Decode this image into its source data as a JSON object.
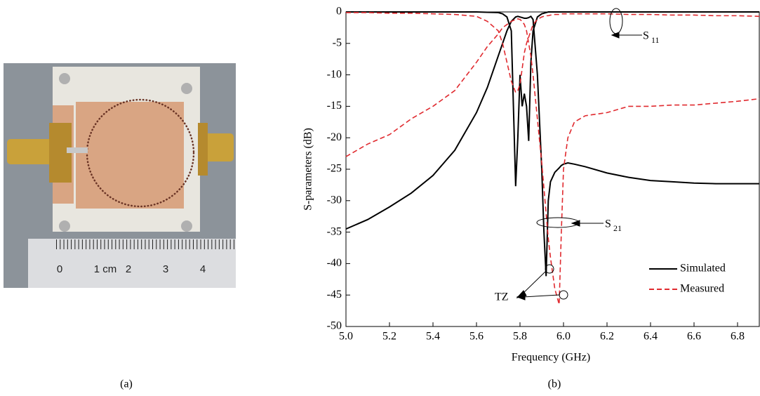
{
  "captions": {
    "a": "(a)",
    "b": "(b)"
  },
  "photo": {
    "ruler_labels": [
      "0",
      "1 cm",
      "2",
      "3",
      "4"
    ]
  },
  "chart_data": {
    "type": "line",
    "xlabel": "Frequency (GHz)",
    "ylabel": "S-parameters (dB)",
    "xlim": [
      5.0,
      6.9
    ],
    "ylim": [
      -50,
      0
    ],
    "xticks": [
      {
        "value": 5.0,
        "label": "5.0"
      },
      5.2,
      5.4,
      5.6,
      5.8,
      {
        "value": 6.0,
        "label": "6.0"
      },
      6.2,
      6.4,
      6.6,
      6.8
    ],
    "yticks": [
      0,
      -5,
      -10,
      -15,
      -20,
      -25,
      -30,
      -35,
      -40,
      -45,
      -50
    ],
    "legend": {
      "position": "lower right"
    },
    "annotations": {
      "s11": {
        "text": "S",
        "sub": "11"
      },
      "s21": {
        "text": "S",
        "sub": "21"
      },
      "tz": "TZ"
    },
    "x": [
      5.0,
      5.1,
      5.2,
      5.3,
      5.4,
      5.5,
      5.6,
      5.65,
      5.7,
      5.72,
      5.74,
      5.76,
      5.78,
      5.79,
      5.8,
      5.81,
      5.82,
      5.83,
      5.84,
      5.85,
      5.86,
      5.88,
      5.9,
      5.91,
      5.92,
      5.93,
      5.94,
      5.96,
      5.98,
      5.99,
      6.0,
      6.02,
      6.05,
      6.1,
      6.2,
      6.3,
      6.4,
      6.5,
      6.6,
      6.7,
      6.8,
      6.9
    ],
    "series": [
      {
        "name": "Simulated",
        "color": "#000000",
        "dashed": false,
        "values": [
          0,
          0,
          0,
          0,
          0,
          0,
          0,
          -0.05,
          -0.1,
          -0.3,
          -0.8,
          -3,
          -27.7,
          -20,
          -10,
          -15,
          -13,
          -15,
          -20.5,
          -8,
          -3,
          -0.8,
          -0.3,
          -0.2,
          -0.1,
          0,
          0,
          0,
          0,
          0,
          0,
          0,
          0,
          0,
          0,
          0,
          0,
          0,
          0,
          0,
          0,
          0
        ]
      },
      {
        "name": "Simulated",
        "color": "#000000",
        "dashed": false,
        "values": [
          -34.5,
          -33,
          -31,
          -28.8,
          -26,
          -22,
          -16,
          -12,
          -7,
          -5,
          -3,
          -1.5,
          -0.8,
          -0.7,
          -0.8,
          -0.9,
          -1,
          -1,
          -0.9,
          -0.7,
          -1.2,
          -10,
          -25,
          -35,
          -42,
          -30,
          -27,
          -25.5,
          -24.8,
          -24.4,
          -24.2,
          -24,
          -24.2,
          -24.6,
          -25.6,
          -26.3,
          -26.8,
          -27,
          -27.2,
          -27.3,
          -27.3,
          -27.3
        ]
      },
      {
        "name": "Measured",
        "color": "#e02a2f",
        "dashed": true,
        "values": [
          -0.1,
          -0.1,
          -0.2,
          -0.2,
          -0.3,
          -0.4,
          -0.7,
          -1.5,
          -3,
          -5,
          -8,
          -11,
          -12.8,
          -12.5,
          -11.5,
          -9,
          -6.5,
          -5,
          -4,
          -3,
          -2,
          -1.2,
          -0.8,
          -0.7,
          -0.6,
          -0.6,
          -0.5,
          -0.4,
          -0.4,
          -0.3,
          -0.3,
          -0.3,
          -0.3,
          -0.3,
          -0.3,
          -0.4,
          -0.4,
          -0.5,
          -0.5,
          -0.6,
          -0.6,
          -0.7
        ]
      },
      {
        "name": "Measured",
        "color": "#e02a2f",
        "dashed": true,
        "values": [
          -23,
          -21,
          -19.5,
          -17,
          -15,
          -12.5,
          -8,
          -5.5,
          -3.5,
          -2.5,
          -2,
          -1.5,
          -1.2,
          -1.1,
          -1.2,
          -1.5,
          -2,
          -3,
          -5,
          -7,
          -10,
          -17,
          -24,
          -28,
          -32,
          -36,
          -39,
          -44,
          -46.5,
          -35,
          -25,
          -20,
          -17.5,
          -16.5,
          -16,
          -15,
          -15,
          -14.8,
          -14.8,
          -14.5,
          -14.2,
          -13.8
        ]
      }
    ]
  }
}
